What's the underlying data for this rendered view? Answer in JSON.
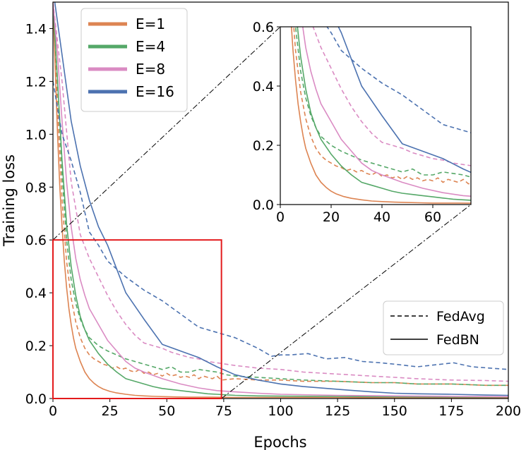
{
  "chart_data": {
    "type": "line",
    "xlabel": "Epochs",
    "ylabel": "Training loss",
    "xlim": [
      0,
      200
    ],
    "ylim": [
      0,
      1.5
    ],
    "xticks": [
      "0",
      "25",
      "50",
      "75",
      "100",
      "125",
      "150",
      "175",
      "200"
    ],
    "yticks": [
      "0.0",
      "0.2",
      "0.4",
      "0.6",
      "0.8",
      "1.0",
      "1.2",
      "1.4"
    ],
    "grid": false,
    "legend": {
      "placement": "top-left",
      "entries": [
        {
          "label": "E=1",
          "color": "#dd8452"
        },
        {
          "label": "E=4",
          "color": "#55a868"
        },
        {
          "label": "E=8",
          "color": "#da8bc3"
        },
        {
          "label": "E=16",
          "color": "#4c72b0"
        }
      ]
    },
    "style_legend": {
      "placement": "right",
      "entries": [
        {
          "label": "FedAvg",
          "dash": "dashed"
        },
        {
          "label": "FedBN",
          "dash": "solid"
        }
      ]
    },
    "highlight_box": {
      "x": [
        0,
        74
      ],
      "y": [
        0,
        0.6
      ],
      "color": "#e31a1c"
    },
    "inset": {
      "placement": "top-right",
      "xlim": [
        0,
        75
      ],
      "ylim": [
        0,
        0.6
      ],
      "xticks": [
        "0",
        "20",
        "40",
        "60"
      ],
      "yticks": [
        "0.0",
        "0.2",
        "0.4",
        "0.6"
      ]
    },
    "series": [
      {
        "name": "E=1",
        "method": "FedBN",
        "color": "#dd8452",
        "dash": "solid",
        "x": [
          0,
          1,
          2,
          3,
          4,
          5,
          6,
          7,
          8,
          9,
          10,
          12,
          14,
          16,
          18,
          20,
          22,
          25,
          28,
          32,
          36,
          40,
          45,
          50,
          55,
          60,
          70,
          80,
          100,
          125,
          150,
          175,
          200
        ],
        "y": [
          1.5,
          1.25,
          1.0,
          0.8,
          0.65,
          0.52,
          0.42,
          0.34,
          0.28,
          0.23,
          0.19,
          0.14,
          0.1,
          0.075,
          0.058,
          0.045,
          0.036,
          0.027,
          0.021,
          0.016,
          0.012,
          0.01,
          0.008,
          0.007,
          0.006,
          0.005,
          0.005,
          0.004,
          0.004,
          0.004,
          0.003,
          0.003,
          0.003
        ]
      },
      {
        "name": "E=1",
        "method": "FedAvg",
        "color": "#dd8452",
        "dash": "dashed",
        "x": [
          0,
          2,
          4,
          6,
          8,
          10,
          12,
          14,
          16,
          18,
          20,
          22,
          24,
          26,
          28,
          30,
          32,
          34,
          36,
          38,
          40,
          42,
          44,
          46,
          48,
          50,
          52,
          54,
          56,
          58,
          60,
          62,
          64,
          66,
          68,
          70,
          72,
          74,
          80,
          90,
          100,
          110,
          125,
          140,
          150,
          160,
          175,
          190,
          200
        ],
        "y": [
          1.5,
          1.1,
          0.75,
          0.52,
          0.38,
          0.29,
          0.23,
          0.19,
          0.165,
          0.15,
          0.14,
          0.13,
          0.125,
          0.115,
          0.12,
          0.11,
          0.115,
          0.105,
          0.1,
          0.11,
          0.095,
          0.1,
          0.09,
          0.095,
          0.085,
          0.095,
          0.085,
          0.09,
          0.08,
          0.085,
          0.08,
          0.09,
          0.075,
          0.085,
          0.08,
          0.075,
          0.085,
          0.07,
          0.075,
          0.07,
          0.07,
          0.065,
          0.065,
          0.06,
          0.06,
          0.055,
          0.055,
          0.05,
          0.05
        ]
      },
      {
        "name": "E=4",
        "method": "FedBN",
        "color": "#55a868",
        "dash": "solid",
        "x": [
          0,
          2,
          4,
          6,
          8,
          10,
          12,
          14,
          16,
          20,
          24,
          28,
          32,
          36,
          40,
          44,
          48,
          52,
          56,
          60,
          64,
          68,
          72,
          76,
          80,
          90,
          100,
          125,
          150,
          175,
          200
        ],
        "y": [
          1.5,
          1.2,
          0.9,
          0.66,
          0.5,
          0.39,
          0.31,
          0.26,
          0.22,
          0.17,
          0.13,
          0.1,
          0.075,
          0.065,
          0.055,
          0.045,
          0.038,
          0.034,
          0.03,
          0.026,
          0.022,
          0.018,
          0.016,
          0.014,
          0.012,
          0.01,
          0.009,
          0.008,
          0.007,
          0.006,
          0.006
        ]
      },
      {
        "name": "E=4",
        "method": "FedAvg",
        "color": "#55a868",
        "dash": "dashed",
        "x": [
          0,
          2,
          4,
          6,
          8,
          10,
          12,
          14,
          16,
          20,
          24,
          28,
          32,
          36,
          40,
          44,
          48,
          52,
          56,
          60,
          64,
          68,
          72,
          76,
          80,
          90,
          100,
          110,
          125,
          140,
          150,
          160,
          175,
          190,
          200
        ],
        "y": [
          1.5,
          1.2,
          0.85,
          0.6,
          0.45,
          0.36,
          0.3,
          0.26,
          0.23,
          0.2,
          0.18,
          0.165,
          0.15,
          0.14,
          0.13,
          0.12,
          0.11,
          0.12,
          0.1,
          0.1,
          0.11,
          0.105,
          0.1,
          0.09,
          0.085,
          0.08,
          0.075,
          0.07,
          0.065,
          0.06,
          0.06,
          0.055,
          0.055,
          0.05,
          0.05
        ]
      },
      {
        "name": "E=8",
        "method": "FedBN",
        "color": "#da8bc3",
        "dash": "solid",
        "x": [
          0,
          2,
          4,
          6,
          8,
          10,
          12,
          14,
          16,
          20,
          24,
          28,
          32,
          36,
          40,
          48,
          56,
          64,
          72,
          80,
          90,
          100,
          125,
          150,
          175,
          200
        ],
        "y": [
          1.5,
          1.3,
          1.05,
          0.82,
          0.65,
          0.53,
          0.45,
          0.39,
          0.34,
          0.28,
          0.22,
          0.18,
          0.14,
          0.115,
          0.1,
          0.075,
          0.055,
          0.04,
          0.03,
          0.025,
          0.02,
          0.016,
          0.012,
          0.01,
          0.008,
          0.007
        ]
      },
      {
        "name": "E=8",
        "method": "FedAvg",
        "color": "#da8bc3",
        "dash": "dashed",
        "x": [
          0,
          4,
          8,
          12,
          16,
          20,
          24,
          28,
          32,
          36,
          40,
          44,
          48,
          52,
          56,
          60,
          64,
          68,
          72,
          76,
          80,
          90,
          100,
          110,
          120,
          130,
          140,
          150,
          160,
          175,
          190,
          200
        ],
        "y": [
          1.5,
          1.2,
          0.82,
          0.62,
          0.53,
          0.46,
          0.39,
          0.33,
          0.28,
          0.24,
          0.21,
          0.2,
          0.19,
          0.175,
          0.165,
          0.155,
          0.15,
          0.14,
          0.135,
          0.13,
          0.125,
          0.115,
          0.11,
          0.1,
          0.095,
          0.09,
          0.085,
          0.08,
          0.075,
          0.07,
          0.068,
          0.065
        ]
      },
      {
        "name": "E=16",
        "method": "FedBN",
        "color": "#4c72b0",
        "dash": "solid",
        "x": [
          0,
          4,
          8,
          12,
          16,
          20,
          24,
          32,
          40,
          48,
          56,
          64,
          72,
          80,
          90,
          100,
          110,
          125,
          140,
          150,
          160,
          175,
          190,
          200
        ],
        "y": [
          1.55,
          1.3,
          1.05,
          0.88,
          0.75,
          0.65,
          0.58,
          0.4,
          0.3,
          0.205,
          0.18,
          0.155,
          0.12,
          0.09,
          0.07,
          0.055,
          0.045,
          0.035,
          0.025,
          0.02,
          0.018,
          0.016,
          0.013,
          0.012
        ]
      },
      {
        "name": "E=16",
        "method": "FedAvg",
        "color": "#4c72b0",
        "dash": "dashed",
        "x": [
          0,
          4,
          8,
          12,
          16,
          20,
          24,
          32,
          40,
          48,
          56,
          64,
          72,
          80,
          90,
          96,
          100,
          104,
          112,
          120,
          128,
          136,
          144,
          150,
          160,
          176,
          184,
          192,
          200
        ],
        "y": [
          1.2,
          1.0,
          0.9,
          0.78,
          0.63,
          0.58,
          0.52,
          0.46,
          0.41,
          0.37,
          0.32,
          0.27,
          0.25,
          0.23,
          0.19,
          0.16,
          0.165,
          0.165,
          0.17,
          0.15,
          0.155,
          0.14,
          0.135,
          0.13,
          0.12,
          0.135,
          0.12,
          0.115,
          0.11
        ]
      }
    ]
  }
}
